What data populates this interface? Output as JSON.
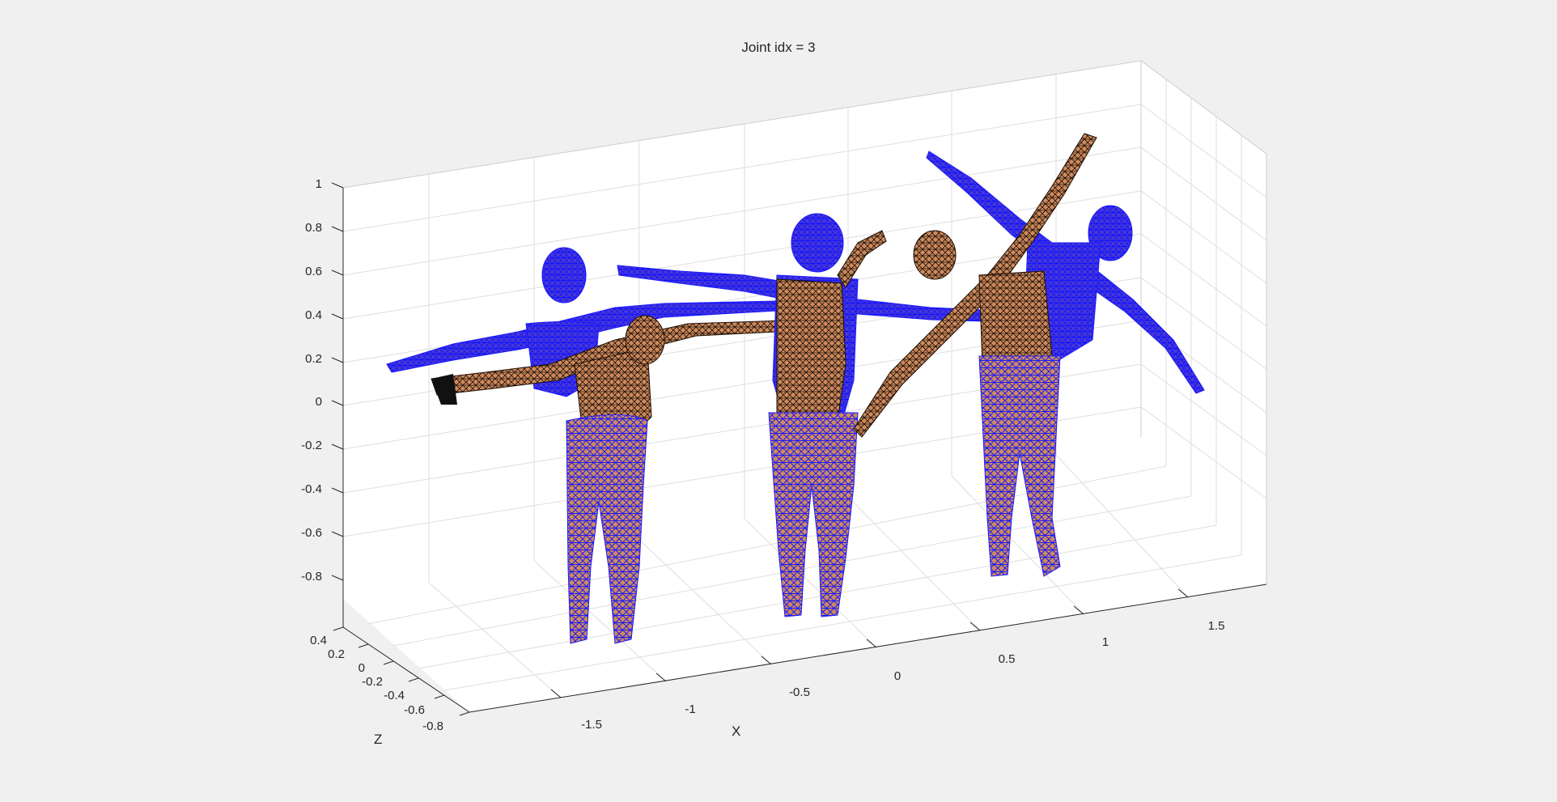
{
  "figure": {
    "title": "Joint idx = 3",
    "background": "#f0f0f0"
  },
  "axes": {
    "xlabel": "X",
    "ylabel": "",
    "zlabel": "Z",
    "x_ticks": [
      "-1.5",
      "-1",
      "-0.5",
      "0",
      "0.5",
      "1",
      "1.5"
    ],
    "z_ticks": [
      "0.4",
      "0.2",
      "0",
      "-0.2",
      "-0.4",
      "-0.6",
      "-0.8"
    ],
    "y_ticks": [
      "1",
      "0.8",
      "0.6",
      "0.4",
      "0.2",
      "0",
      "-0.2",
      "-0.4",
      "-0.6",
      "-0.8"
    ],
    "grid": true,
    "pane_color": "#ffffff",
    "grid_color": "#dedede",
    "axis_color": "#262626"
  },
  "meshes": {
    "edge_color_rest": "#1a1aff",
    "face_color_rest": "#3a2cc8",
    "edge_color_posed": "#000000",
    "face_color_posed": "#d08a5c",
    "count": 6
  }
}
